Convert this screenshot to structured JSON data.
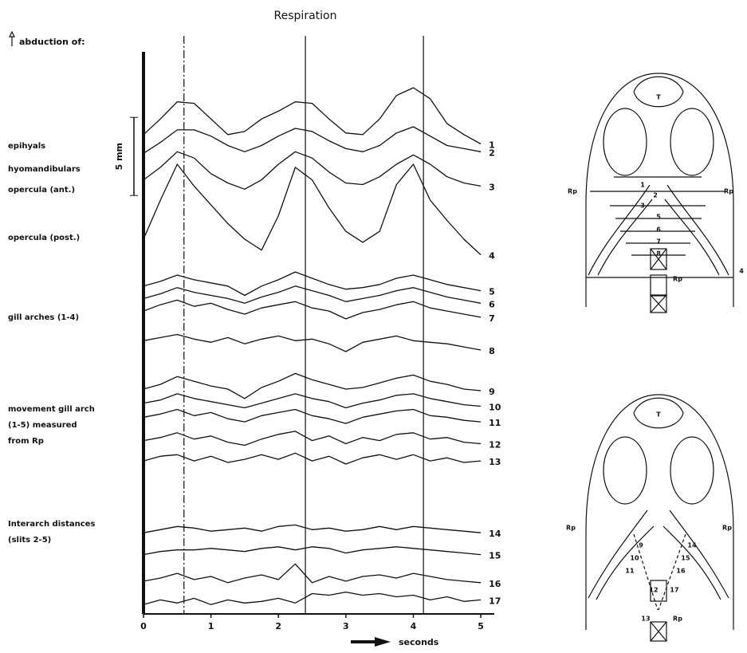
{
  "chart_data": {
    "type": "line",
    "title": "Respiration",
    "y_label": "abduction of:",
    "x_label": "seconds",
    "x": [
      0,
      0.25,
      0.5,
      0.75,
      1,
      1.25,
      1.5,
      1.75,
      2,
      2.25,
      2.5,
      2.75,
      3,
      3.25,
      3.5,
      3.75,
      4,
      4.25,
      4.5,
      4.75,
      5
    ],
    "xlim": [
      0,
      5.2
    ],
    "xticks": [
      0,
      1,
      2,
      3,
      4,
      5
    ],
    "ylim": [
      0,
      36
    ],
    "color": "#111111",
    "scale_bar": {
      "label": "5 mm",
      "length": 5
    },
    "vlines": [
      0.6,
      2.4,
      4.15
    ],
    "vline_dashed": [
      true,
      false,
      false
    ],
    "groups": [
      [
        "epihyals"
      ],
      [
        "hyomandibulars"
      ],
      [
        "opercula (ant.)"
      ],
      [
        "opercula (post.)"
      ],
      [
        "gill arches (1-4)"
      ],
      [
        "movement gill arch",
        "(1-5) measured",
        "from Rp"
      ],
      [
        "Interarch distances",
        "(slits 2-5)"
      ]
    ],
    "series": [
      {
        "name": "1",
        "values": [
          30.7,
          31.7,
          32.8,
          32.7,
          31.7,
          30.7,
          30.9,
          31.7,
          32.2,
          32.8,
          32.7,
          31.7,
          30.8,
          30.7,
          31.7,
          33.2,
          33.7,
          33.0,
          31.4,
          30.7,
          30.1
        ]
      },
      {
        "name": "2",
        "values": [
          29.5,
          30.2,
          31.0,
          31.0,
          30.6,
          30.0,
          29.6,
          30.0,
          30.6,
          31.1,
          30.9,
          30.3,
          29.8,
          29.6,
          30.0,
          30.8,
          31.2,
          30.6,
          30.0,
          29.8,
          29.6
        ]
      },
      {
        "name": "3",
        "values": [
          27.8,
          28.6,
          29.6,
          29.2,
          28.2,
          27.6,
          27.2,
          27.8,
          28.8,
          29.6,
          29.2,
          28.3,
          27.6,
          27.5,
          28.0,
          28.8,
          29.4,
          28.8,
          28.0,
          27.6,
          27.4
        ]
      },
      {
        "name": "4",
        "values": [
          24.0,
          26.5,
          28.8,
          27.4,
          26.2,
          25.0,
          24.0,
          23.3,
          25.5,
          28.6,
          27.8,
          26.0,
          24.5,
          23.8,
          24.5,
          27.5,
          28.8,
          26.5,
          25.2,
          24.0,
          23.0
        ]
      },
      {
        "name": "5",
        "values": [
          21.0,
          21.3,
          21.7,
          21.4,
          21.2,
          21.0,
          20.4,
          21.0,
          21.4,
          21.9,
          21.5,
          21.1,
          20.8,
          20.9,
          21.1,
          21.5,
          21.7,
          21.4,
          21.1,
          20.9,
          20.7
        ]
      },
      {
        "name": "6",
        "values": [
          20.2,
          20.5,
          20.9,
          20.6,
          20.4,
          20.2,
          19.9,
          20.3,
          20.6,
          21.0,
          20.7,
          20.4,
          20.0,
          20.2,
          20.4,
          20.7,
          20.9,
          20.6,
          20.3,
          20.1,
          19.9
        ]
      },
      {
        "name": "7",
        "values": [
          19.4,
          19.8,
          20.1,
          19.7,
          19.9,
          19.5,
          19.2,
          19.6,
          19.8,
          20.0,
          19.6,
          19.4,
          18.9,
          19.3,
          19.5,
          19.8,
          20.0,
          19.6,
          19.4,
          19.2,
          19.0
        ]
      },
      {
        "name": "8",
        "values": [
          17.5,
          17.7,
          17.9,
          17.6,
          17.4,
          17.7,
          17.3,
          17.6,
          17.8,
          17.5,
          17.6,
          17.3,
          16.8,
          17.4,
          17.6,
          17.8,
          17.5,
          17.4,
          17.3,
          17.1,
          16.9
        ]
      },
      {
        "name": "9",
        "values": [
          14.4,
          14.7,
          15.2,
          14.9,
          14.6,
          14.4,
          13.8,
          14.5,
          14.9,
          15.4,
          15.0,
          14.7,
          14.4,
          14.5,
          14.8,
          15.1,
          15.3,
          14.9,
          14.7,
          14.4,
          14.3
        ]
      },
      {
        "name": "10",
        "values": [
          13.5,
          13.7,
          14.1,
          13.8,
          13.6,
          13.4,
          13.2,
          13.5,
          13.8,
          14.1,
          13.8,
          13.6,
          13.2,
          13.5,
          13.7,
          14.0,
          14.1,
          13.8,
          13.6,
          13.4,
          13.3
        ]
      },
      {
        "name": "11",
        "values": [
          12.6,
          12.8,
          13.1,
          12.7,
          12.9,
          12.5,
          12.3,
          12.7,
          12.9,
          13.1,
          12.7,
          12.5,
          12.2,
          12.6,
          12.8,
          13.0,
          13.1,
          12.7,
          12.6,
          12.4,
          12.3
        ]
      },
      {
        "name": "12",
        "values": [
          11.1,
          11.3,
          11.6,
          11.2,
          11.4,
          11.0,
          10.8,
          11.2,
          11.5,
          11.7,
          11.1,
          11.4,
          10.9,
          11.3,
          11.1,
          11.5,
          11.6,
          11.2,
          11.3,
          11.0,
          10.9
        ]
      },
      {
        "name": "13",
        "values": [
          9.8,
          10.1,
          10.2,
          9.8,
          10.1,
          9.7,
          9.9,
          10.2,
          9.9,
          10.3,
          9.8,
          10.1,
          9.6,
          10.0,
          10.2,
          9.9,
          10.2,
          9.8,
          10.0,
          9.7,
          9.8
        ]
      },
      {
        "name": "14",
        "values": [
          5.2,
          5.4,
          5.6,
          5.5,
          5.3,
          5.4,
          5.5,
          5.3,
          5.6,
          5.7,
          5.4,
          5.5,
          5.3,
          5.4,
          5.6,
          5.4,
          5.6,
          5.5,
          5.4,
          5.3,
          5.2
        ]
      },
      {
        "name": "15",
        "values": [
          3.8,
          4.0,
          4.1,
          4.1,
          4.2,
          4.1,
          4.0,
          4.2,
          4.3,
          4.1,
          4.3,
          4.2,
          3.9,
          4.1,
          4.2,
          4.3,
          4.2,
          4.1,
          4.0,
          3.9,
          3.8
        ]
      },
      {
        "name": "16",
        "values": [
          2.1,
          2.3,
          2.6,
          2.2,
          2.4,
          2.0,
          2.3,
          2.5,
          2.2,
          3.2,
          2.0,
          2.4,
          2.1,
          2.4,
          2.5,
          2.3,
          2.6,
          2.4,
          2.2,
          2.1,
          2.0
        ]
      },
      {
        "name": "17",
        "values": [
          0.6,
          0.9,
          0.7,
          1.0,
          0.6,
          0.9,
          0.7,
          0.8,
          1.0,
          0.7,
          1.3,
          1.2,
          1.4,
          1.2,
          1.3,
          1.1,
          1.2,
          0.9,
          1.1,
          0.8,
          0.9
        ]
      }
    ]
  },
  "diagrams": [
    {
      "labels": [
        "T",
        "1",
        "2",
        "3",
        "5",
        "6",
        "7",
        "8",
        "Rp",
        "Rp",
        "Rp",
        "4"
      ]
    },
    {
      "labels": [
        "T",
        "Rp",
        "Rp",
        "9",
        "10",
        "11",
        "12",
        "13",
        "14",
        "15",
        "16",
        "17",
        "Rp"
      ]
    }
  ]
}
